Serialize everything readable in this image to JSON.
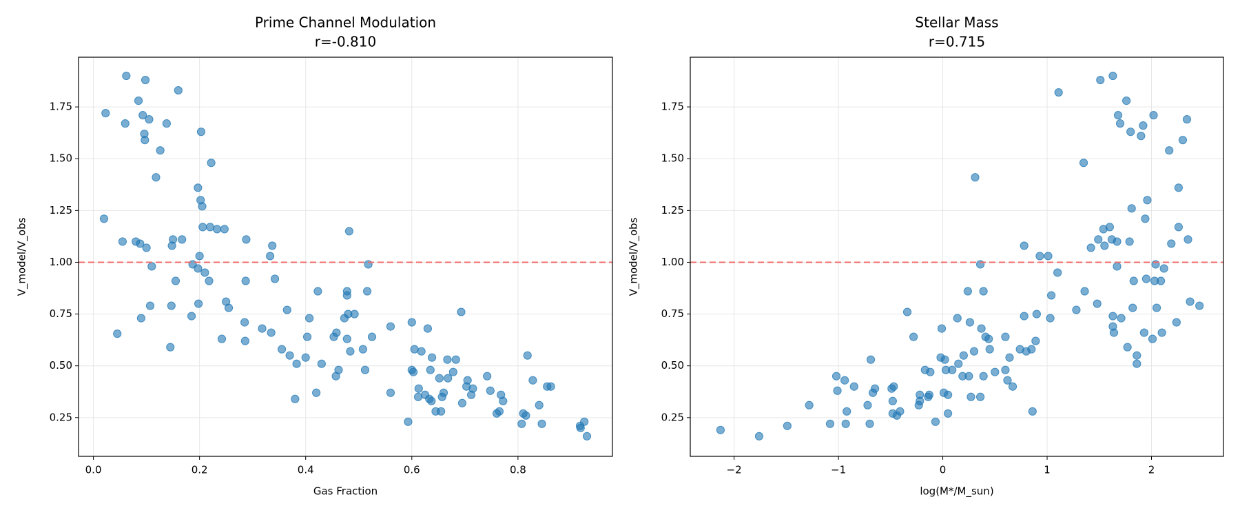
{
  "chart_data": [
    {
      "type": "scatter",
      "title": "Prime Channel Modulation",
      "subtitle": "r=-0.810",
      "x_label": "Gas Fraction",
      "y_label": "V_model/V_obs",
      "xlim": [
        -0.028,
        0.978
      ],
      "ylim": [
        0.063,
        1.99
      ],
      "xticks": [
        {
          "value": 0,
          "label": "0.0"
        },
        0.2,
        0.4,
        0.6,
        0.8
      ],
      "yticks": [
        0.25,
        {
          "value": 0.5,
          "label": "0.50"
        },
        0.75,
        {
          "value": 1,
          "label": "1.00"
        },
        1.25,
        {
          "value": 1.5,
          "label": "1.50"
        },
        1.75
      ],
      "grid": true,
      "hline": {
        "value": 1,
        "color": "#f26b6b"
      },
      "color": "#1f77b4",
      "x": [
        0.02,
        0.023,
        0.045,
        0.055,
        0.06,
        0.062,
        0.08,
        0.085,
        0.088,
        0.09,
        0.093,
        0.096,
        0.097,
        0.098,
        0.1,
        0.105,
        0.107,
        0.11,
        0.118,
        0.126,
        0.138,
        0.145,
        0.147,
        0.148,
        0.15,
        0.155,
        0.16,
        0.167,
        0.185,
        0.187,
        0.197,
        0.197,
        0.198,
        0.2,
        0.202,
        0.203,
        0.205,
        0.206,
        0.21,
        0.218,
        0.22,
        0.222,
        0.233,
        0.242,
        0.247,
        0.25,
        0.255,
        0.285,
        0.286,
        0.287,
        0.288,
        0.318,
        0.333,
        0.335,
        0.337,
        0.342,
        0.355,
        0.365,
        0.37,
        0.38,
        0.383,
        0.4,
        0.403,
        0.407,
        0.42,
        0.423,
        0.43,
        0.453,
        0.457,
        0.458,
        0.462,
        0.473,
        0.478,
        0.478,
        0.478,
        0.48,
        0.482,
        0.484,
        0.492,
        0.508,
        0.512,
        0.516,
        0.518,
        0.525,
        0.56,
        0.56,
        0.593,
        0.6,
        0.6,
        0.603,
        0.605,
        0.612,
        0.613,
        0.618,
        0.625,
        0.63,
        0.633,
        0.635,
        0.637,
        0.638,
        0.645,
        0.652,
        0.655,
        0.657,
        0.66,
        0.667,
        0.668,
        0.678,
        0.683,
        0.693,
        0.695,
        0.703,
        0.705,
        0.712,
        0.715,
        0.742,
        0.748,
        0.76,
        0.765,
        0.768,
        0.772,
        0.807,
        0.81,
        0.815,
        0.818,
        0.828,
        0.84,
        0.845,
        0.855,
        0.862,
        0.917,
        0.918,
        0.925,
        0.93
      ],
      "values": [
        1.21,
        1.72,
        0.655,
        1.1,
        1.67,
        1.9,
        1.1,
        1.78,
        1.09,
        0.73,
        1.71,
        1.62,
        1.59,
        1.88,
        1.07,
        1.69,
        0.79,
        0.98,
        1.41,
        1.54,
        1.67,
        0.59,
        0.79,
        1.08,
        1.11,
        0.91,
        1.83,
        1.11,
        0.74,
        0.99,
        1.36,
        0.97,
        0.8,
        1.03,
        1.3,
        1.63,
        1.27,
        1.17,
        0.95,
        0.91,
        1.17,
        1.48,
        1.16,
        0.63,
        1.16,
        0.81,
        0.78,
        0.71,
        0.62,
        0.91,
        1.11,
        0.68,
        1.03,
        0.66,
        1.08,
        0.92,
        0.58,
        0.77,
        0.55,
        0.34,
        0.51,
        0.54,
        0.64,
        0.73,
        0.37,
        0.86,
        0.51,
        0.64,
        0.45,
        0.66,
        0.48,
        0.73,
        0.84,
        0.63,
        0.86,
        0.75,
        1.15,
        0.57,
        0.75,
        0.58,
        0.48,
        0.86,
        0.99,
        0.64,
        0.37,
        0.69,
        0.23,
        0.71,
        0.48,
        0.47,
        0.58,
        0.35,
        0.39,
        0.57,
        0.36,
        0.68,
        0.34,
        0.48,
        0.33,
        0.54,
        0.28,
        0.44,
        0.28,
        0.35,
        0.37,
        0.53,
        0.44,
        0.47,
        0.53,
        0.76,
        0.32,
        0.4,
        0.43,
        0.36,
        0.39,
        0.45,
        0.38,
        0.27,
        0.28,
        0.36,
        0.33,
        0.22,
        0.27,
        0.26,
        0.55,
        0.43,
        0.31,
        0.22,
        0.4,
        0.4,
        0.21,
        0.2,
        0.23,
        0.16
      ]
    },
    {
      "type": "scatter",
      "title": "Stellar Mass",
      "subtitle": "r=0.715",
      "x_label": "log(M*/M_sun)",
      "y_label": "V_model/V_obs",
      "xlim": [
        -2.42,
        2.69
      ],
      "ylim": [
        0.063,
        1.99
      ],
      "xticks": [
        {
          "value": -2,
          "label": "−2"
        },
        {
          "value": -1,
          "label": "−1"
        },
        0,
        1,
        2
      ],
      "yticks": [
        0.25,
        {
          "value": 0.5,
          "label": "0.50"
        },
        0.75,
        {
          "value": 1,
          "label": "1.00"
        },
        1.25,
        {
          "value": 1.5,
          "label": "1.50"
        },
        1.75
      ],
      "grid": true,
      "hline": {
        "value": 1,
        "color": "#f26b6b"
      },
      "color": "#1f77b4",
      "x": [
        -2.13,
        -1.76,
        -1.49,
        -1.28,
        -1.08,
        -1.02,
        -1.01,
        -0.94,
        -0.93,
        -0.92,
        -0.85,
        -0.72,
        -0.7,
        -0.69,
        -0.67,
        -0.65,
        -0.49,
        -0.48,
        -0.48,
        -0.47,
        -0.44,
        -0.41,
        -0.34,
        -0.28,
        -0.23,
        -0.22,
        -0.22,
        -0.17,
        -0.14,
        -0.13,
        -0.12,
        -0.07,
        -0.02,
        -0.01,
        0.01,
        0.02,
        0.03,
        0.05,
        0.05,
        0.09,
        0.14,
        0.15,
        0.19,
        0.2,
        0.24,
        0.25,
        0.26,
        0.27,
        0.3,
        0.31,
        0.36,
        0.36,
        0.37,
        0.39,
        0.39,
        0.41,
        0.44,
        0.45,
        0.5,
        0.6,
        0.6,
        0.62,
        0.64,
        0.67,
        0.74,
        0.78,
        0.78,
        0.8,
        0.85,
        0.86,
        0.89,
        0.9,
        0.93,
        1.01,
        1.03,
        1.04,
        1.1,
        1.11,
        1.28,
        1.35,
        1.36,
        1.42,
        1.48,
        1.49,
        1.51,
        1.54,
        1.55,
        1.6,
        1.62,
        1.63,
        1.63,
        1.63,
        1.64,
        1.67,
        1.67,
        1.68,
        1.7,
        1.71,
        1.76,
        1.77,
        1.79,
        1.8,
        1.81,
        1.82,
        1.83,
        1.86,
        1.86,
        1.9,
        1.92,
        1.93,
        1.94,
        1.95,
        1.96,
        2.01,
        2.02,
        2.03,
        2.04,
        2.05,
        2.09,
        2.1,
        2.12,
        2.17,
        2.19,
        2.24,
        2.26,
        2.26,
        2.3,
        2.34,
        2.35,
        2.37,
        2.46
      ],
      "values": [
        0.19,
        0.16,
        0.21,
        0.31,
        0.22,
        0.45,
        0.38,
        0.43,
        0.22,
        0.28,
        0.4,
        0.31,
        0.22,
        0.53,
        0.37,
        0.39,
        0.39,
        0.33,
        0.27,
        0.4,
        0.26,
        0.28,
        0.76,
        0.64,
        0.31,
        0.33,
        0.36,
        0.48,
        0.35,
        0.36,
        0.47,
        0.23,
        0.54,
        0.68,
        0.37,
        0.53,
        0.48,
        0.36,
        0.27,
        0.48,
        0.73,
        0.51,
        0.45,
        0.55,
        0.86,
        0.45,
        0.71,
        0.35,
        0.57,
        1.41,
        0.99,
        0.35,
        0.68,
        0.86,
        0.45,
        0.64,
        0.63,
        0.58,
        0.47,
        0.48,
        0.64,
        0.43,
        0.54,
        0.4,
        0.58,
        1.08,
        0.74,
        0.57,
        0.58,
        0.28,
        0.62,
        0.75,
        1.03,
        1.03,
        0.73,
        0.84,
        0.95,
        1.82,
        0.77,
        1.48,
        0.86,
        1.07,
        0.8,
        1.11,
        1.88,
        1.16,
        1.08,
        1.17,
        1.11,
        0.69,
        1.9,
        0.74,
        0.66,
        1.1,
        0.98,
        1.71,
        1.67,
        0.73,
        1.78,
        0.59,
        1.1,
        1.63,
        1.26,
        0.78,
        0.91,
        0.55,
        0.51,
        1.61,
        1.66,
        0.66,
        1.21,
        0.92,
        1.3,
        0.63,
        1.71,
        0.91,
        0.99,
        0.78,
        0.91,
        0.66,
        0.97,
        1.54,
        1.09,
        0.71,
        1.36,
        1.17,
        1.59,
        1.69,
        1.11,
        0.81,
        0.79
      ]
    }
  ]
}
